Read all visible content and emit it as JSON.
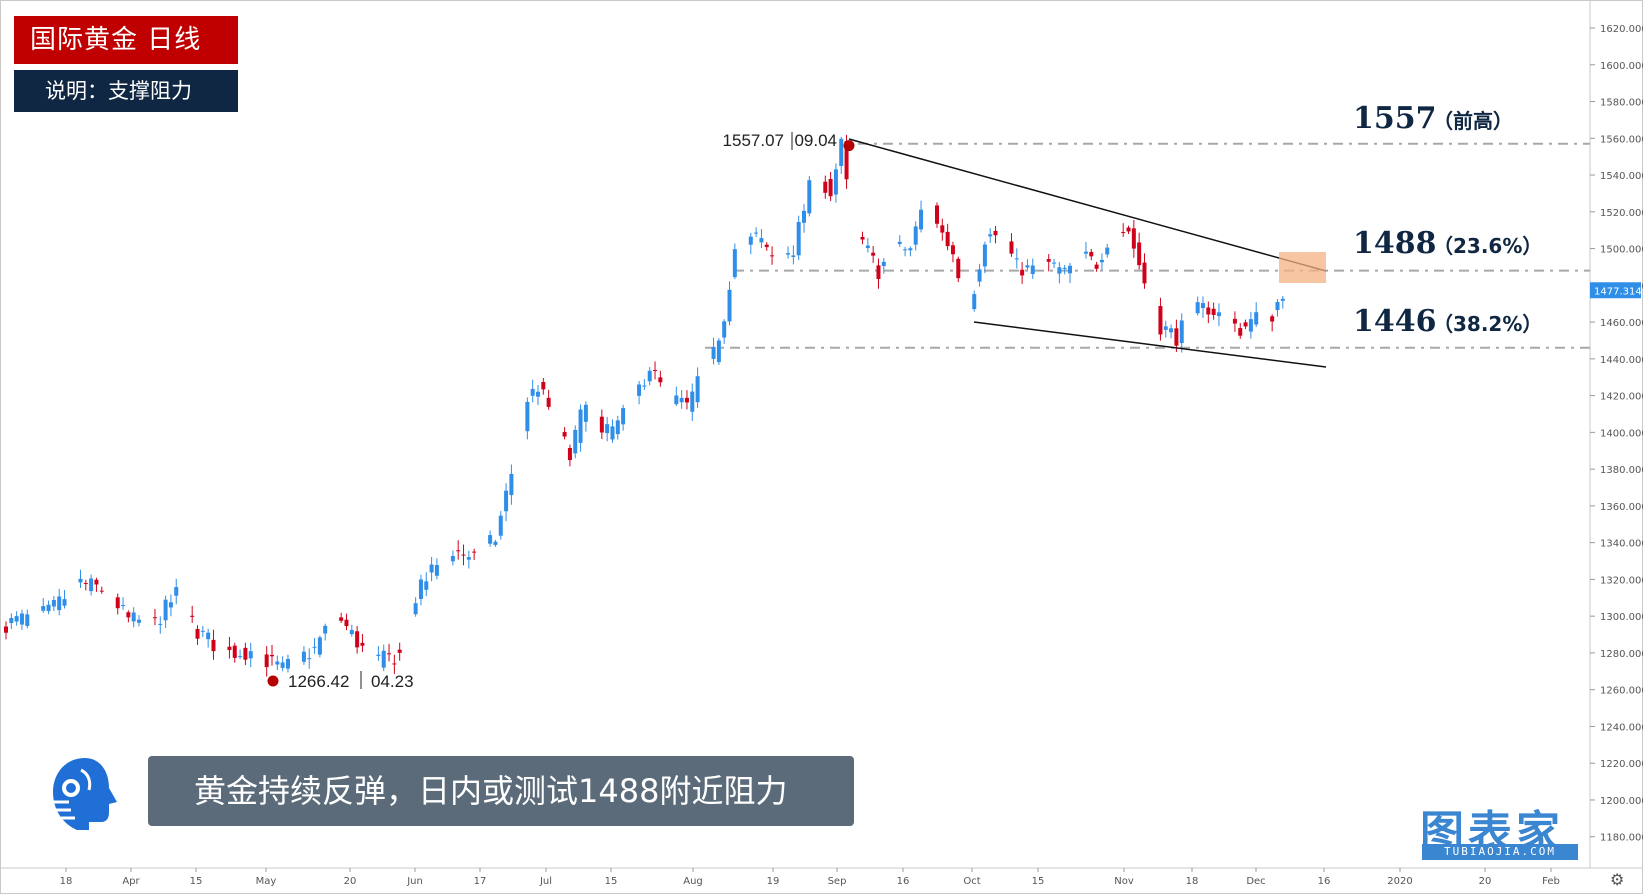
{
  "title": "国际黄金  日线",
  "note": "说明：支撑阻力",
  "headline": "黄金持续反弹，日内或测试1488附近阻力",
  "watermark": {
    "main": "图表家",
    "sub": "TUBIAOJIA.COM"
  },
  "icons": {
    "brand": "robot-head-icon",
    "settings": "gear-icon"
  },
  "colors": {
    "up": "#2f8ee8",
    "down": "#d0021b",
    "title_bg": "#c00000",
    "note_bg": "#0f2743",
    "headline_bg": "#5b6b7a",
    "resistance_box": "#f4b183"
  },
  "chart_data": {
    "type": "candlestick",
    "ylim": [
      1170,
      1630
    ],
    "y_ticks": [
      "1620.000",
      "1600.000",
      "1580.000",
      "1560.000",
      "1540.000",
      "1520.000",
      "1500.000",
      "1480.000",
      "1460.000",
      "1440.000",
      "1420.000",
      "1400.000",
      "1380.000",
      "1360.000",
      "1340.000",
      "1320.000",
      "1300.000",
      "1280.000",
      "1260.000",
      "1240.000",
      "1220.000",
      "1200.000",
      "1180.000"
    ],
    "x_ticks": [
      "18",
      "Apr",
      "15",
      "May",
      "20",
      "Jun",
      "17",
      "Jul",
      "15",
      "Aug",
      "19",
      "Sep",
      "16",
      "Oct",
      "15",
      "Nov",
      "18",
      "Dec",
      "16",
      "2020",
      "20",
      "Feb"
    ],
    "current_price": "1477.314",
    "annotations": {
      "high": {
        "price": "1557.07",
        "date": "09.04",
        "value": 1557.07
      },
      "low": {
        "price": "1266.42",
        "date": "04.23",
        "value": 1266.42
      }
    },
    "levels": [
      {
        "value": 1557,
        "label": "1557",
        "note": "（前高）"
      },
      {
        "value": 1488,
        "label": "1488",
        "note": "（23.6%）"
      },
      {
        "value": 1446,
        "label": "1446",
        "note": "（38.2%）"
      }
    ],
    "trendlines": [
      {
        "from": {
          "bar_date": "09.04",
          "price": 1557
        },
        "to": {
          "price": 1488
        }
      },
      {
        "from": {
          "price": 1459
        },
        "to": {
          "price": 1435
        }
      }
    ],
    "anchors": [
      {
        "day": 0,
        "close": 1296
      },
      {
        "day": 8,
        "close": 1302
      },
      {
        "day": 14,
        "close": 1318
      },
      {
        "day": 19,
        "close": 1314
      },
      {
        "day": 23,
        "close": 1298
      },
      {
        "day": 28,
        "close": 1296
      },
      {
        "day": 32,
        "close": 1312
      },
      {
        "day": 36,
        "close": 1292
      },
      {
        "day": 41,
        "close": 1280
      },
      {
        "day": 46,
        "close": 1281
      },
      {
        "day": 52,
        "close": 1271
      },
      {
        "day": 58,
        "close": 1282
      },
      {
        "day": 62,
        "close": 1302
      },
      {
        "day": 66,
        "close": 1286
      },
      {
        "day": 69,
        "close": 1275
      },
      {
        "day": 74,
        "close": 1279
      },
      {
        "day": 77,
        "close": 1310
      },
      {
        "day": 80,
        "close": 1325
      },
      {
        "day": 84,
        "close": 1336
      },
      {
        "day": 88,
        "close": 1332
      },
      {
        "day": 92,
        "close": 1342
      },
      {
        "day": 96,
        "close": 1390
      },
      {
        "day": 98,
        "close": 1418
      },
      {
        "day": 100,
        "close": 1425
      },
      {
        "day": 104,
        "close": 1402
      },
      {
        "day": 106,
        "close": 1386
      },
      {
        "day": 109,
        "close": 1420
      },
      {
        "day": 112,
        "close": 1398
      },
      {
        "day": 115,
        "close": 1404
      },
      {
        "day": 118,
        "close": 1418
      },
      {
        "day": 121,
        "close": 1436
      },
      {
        "day": 124,
        "close": 1420
      },
      {
        "day": 128,
        "close": 1414
      },
      {
        "day": 131,
        "close": 1432
      },
      {
        "day": 133,
        "close": 1442
      },
      {
        "day": 135,
        "close": 1464
      },
      {
        "day": 137,
        "close": 1500
      },
      {
        "day": 141,
        "close": 1506
      },
      {
        "day": 144,
        "close": 1496
      },
      {
        "day": 148,
        "close": 1500
      },
      {
        "day": 152,
        "close": 1543
      },
      {
        "day": 155,
        "close": 1531
      },
      {
        "day": 157,
        "close": 1556
      },
      {
        "day": 159,
        "close": 1513
      },
      {
        "day": 162,
        "close": 1498
      },
      {
        "day": 164,
        "close": 1488
      },
      {
        "day": 167,
        "close": 1500
      },
      {
        "day": 170,
        "close": 1500
      },
      {
        "day": 173,
        "close": 1530
      },
      {
        "day": 176,
        "close": 1508
      },
      {
        "day": 178,
        "close": 1498
      },
      {
        "day": 181,
        "close": 1466
      },
      {
        "day": 184,
        "close": 1506
      },
      {
        "day": 187,
        "close": 1508
      },
      {
        "day": 190,
        "close": 1490
      },
      {
        "day": 193,
        "close": 1488
      },
      {
        "day": 196,
        "close": 1492
      },
      {
        "day": 199,
        "close": 1486
      },
      {
        "day": 202,
        "close": 1496
      },
      {
        "day": 205,
        "close": 1492
      },
      {
        "day": 208,
        "close": 1511
      },
      {
        "day": 211,
        "close": 1510
      },
      {
        "day": 214,
        "close": 1482
      },
      {
        "day": 217,
        "close": 1458
      },
      {
        "day": 220,
        "close": 1452
      },
      {
        "day": 223,
        "close": 1465
      },
      {
        "day": 226,
        "close": 1468
      },
      {
        "day": 229,
        "close": 1462
      },
      {
        "day": 232,
        "close": 1456
      },
      {
        "day": 235,
        "close": 1462
      },
      {
        "day": 238,
        "close": 1464
      },
      {
        "day": 240,
        "close": 1477
      }
    ]
  }
}
